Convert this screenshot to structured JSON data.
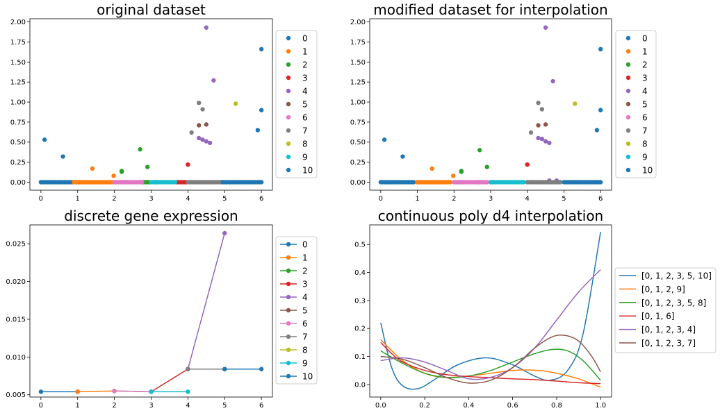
{
  "colors": [
    "#1f77b4",
    "#ff7f0e",
    "#2ca02c",
    "#d62728",
    "#9467bd",
    "#8c564b",
    "#e377c2",
    "#7f7f7f",
    "#bcbd22",
    "#17becf",
    "#1f77b4"
  ],
  "chart_data": [
    {
      "type": "scatter",
      "title": "original dataset",
      "xlim": [
        -0.3,
        6.3
      ],
      "ylim": [
        -0.1,
        2.04
      ],
      "xticks": [
        0,
        1,
        2,
        3,
        4,
        5,
        6
      ],
      "xtick_labels": [
        "0",
        "1",
        "2",
        "3",
        "4",
        "5",
        "6"
      ],
      "yticks": [
        0,
        0.25,
        0.5,
        0.75,
        1,
        1.25,
        1.5,
        1.75,
        2
      ],
      "ytick_labels": [
        "0.00",
        "0.25",
        "0.50",
        "0.75",
        "1.00",
        "1.25",
        "1.50",
        "1.75",
        "2.00"
      ],
      "legend": {
        "position": "right",
        "entries": [
          "0",
          "1",
          "2",
          "3",
          "4",
          "5",
          "6",
          "7",
          "8",
          "9",
          "10"
        ]
      },
      "series": [
        {
          "name": "0",
          "segments": [
            [
              0,
              1.1
            ]
          ],
          "nonzero": [
            [
              0.1,
              0.53
            ],
            [
              0.6,
              0.32
            ]
          ]
        },
        {
          "name": "1",
          "segments": [
            [
              0.9,
              2.0
            ]
          ],
          "nonzero": [
            [
              1.4,
              0.17
            ],
            [
              1.98,
              0.08
            ]
          ]
        },
        {
          "name": "2",
          "segments": [
            [
              2.15,
              2.25
            ],
            [
              2.7,
              2.95
            ]
          ],
          "nonzero": [
            [
              2.2,
              0.14
            ],
            [
              2.2,
              0.13
            ],
            [
              2.7,
              0.41
            ],
            [
              2.9,
              0.19
            ]
          ]
        },
        {
          "name": "3",
          "segments": [
            [
              3.1,
              3.25
            ],
            [
              3.7,
              3.95
            ]
          ],
          "nonzero": [
            [
              4.0,
              0.22
            ]
          ]
        },
        {
          "name": "4",
          "segments": [],
          "nonzero": [
            [
              4.3,
              0.55
            ],
            [
              4.4,
              0.53
            ],
            [
              4.5,
              0.51
            ],
            [
              4.6,
              0.49
            ],
            [
              4.5,
              1.93
            ],
            [
              4.7,
              1.27
            ]
          ]
        },
        {
          "name": "5",
          "segments": [],
          "nonzero": [
            [
              4.3,
              0.71
            ],
            [
              4.5,
              0.72
            ]
          ]
        },
        {
          "name": "6",
          "segments": [
            [
              2.0,
              2.75
            ]
          ],
          "nonzero": []
        },
        {
          "name": "7",
          "segments": [
            [
              4.0,
              5.0
            ]
          ],
          "nonzero": [
            [
              4.1,
              0.62
            ],
            [
              4.3,
              0.99
            ],
            [
              4.4,
              0.91
            ]
          ]
        },
        {
          "name": "8",
          "segments": [],
          "nonzero": [
            [
              5.3,
              0.98
            ]
          ]
        },
        {
          "name": "9",
          "segments": [
            [
              3.0,
              3.65
            ]
          ],
          "nonzero": []
        },
        {
          "name": "10",
          "segments": [
            [
              4.95,
              6.0
            ]
          ],
          "nonzero": [
            [
              5.9,
              0.65
            ],
            [
              6.0,
              1.66
            ],
            [
              6.0,
              0.9
            ]
          ]
        }
      ]
    },
    {
      "type": "scatter",
      "title": "modified dataset for interpolation",
      "xlim": [
        -0.3,
        6.3
      ],
      "ylim": [
        -0.1,
        2.04
      ],
      "xticks": [
        0,
        1,
        2,
        3,
        4,
        5,
        6
      ],
      "xtick_labels": [
        "0",
        "1",
        "2",
        "3",
        "4",
        "5",
        "6"
      ],
      "yticks": [
        0,
        0.25,
        0.5,
        0.75,
        1,
        1.25,
        1.5,
        1.75,
        2
      ],
      "ytick_labels": [
        "0.00",
        "0.25",
        "0.50",
        "0.75",
        "1.00",
        "1.25",
        "1.50",
        "1.75",
        "2.00"
      ],
      "legend": {
        "position": "right",
        "entries": [
          "0",
          "1",
          "2",
          "3",
          "4",
          "5",
          "6",
          "7",
          "8",
          "9",
          "10"
        ]
      },
      "series": [
        {
          "name": "0",
          "segments": [
            [
              0,
              0.9
            ]
          ],
          "nonzero": [
            [
              0.1,
              0.53
            ],
            [
              0.6,
              0.32
            ]
          ]
        },
        {
          "name": "1",
          "segments": [
            [
              1.0,
              1.9
            ]
          ],
          "nonzero": [
            [
              1.4,
              0.17
            ],
            [
              1.98,
              0.08
            ]
          ]
        },
        {
          "name": "2",
          "segments": [
            [
              2.15,
              2.25
            ],
            [
              2.65,
              2.8
            ]
          ],
          "nonzero": [
            [
              2.2,
              0.14
            ],
            [
              2.2,
              0.13
            ],
            [
              2.7,
              0.4
            ],
            [
              2.9,
              0.19
            ]
          ]
        },
        {
          "name": "3",
          "segments": [
            [
              3.0,
              3.05
            ]
          ],
          "nonzero": [
            [
              4.0,
              0.22
            ]
          ]
        },
        {
          "name": "4",
          "segments": [],
          "nonzero": [
            [
              4.3,
              0.55
            ],
            [
              4.4,
              0.54
            ],
            [
              4.5,
              0.51
            ],
            [
              4.6,
              0.49
            ],
            [
              4.5,
              1.93
            ],
            [
              4.7,
              1.26
            ],
            [
              4.6,
              0.02
            ],
            [
              4.8,
              0.02
            ]
          ]
        },
        {
          "name": "5",
          "segments": [],
          "nonzero": [
            [
              4.3,
              0.71
            ],
            [
              4.5,
              0.72
            ]
          ]
        },
        {
          "name": "6",
          "segments": [
            [
              2.0,
              2.9
            ]
          ],
          "nonzero": []
        },
        {
          "name": "7",
          "segments": [
            [
              4.0,
              4.9
            ]
          ],
          "nonzero": [
            [
              4.1,
              0.62
            ],
            [
              4.3,
              0.99
            ],
            [
              4.4,
              0.91
            ]
          ]
        },
        {
          "name": "8",
          "segments": [],
          "nonzero": [
            [
              5.3,
              0.98
            ]
          ]
        },
        {
          "name": "9",
          "segments": [
            [
              3.0,
              3.9
            ]
          ],
          "nonzero": []
        },
        {
          "name": "10",
          "segments": [
            [
              5.0,
              6.0
            ]
          ],
          "nonzero": [
            [
              5.9,
              0.65
            ],
            [
              6.0,
              1.66
            ],
            [
              6.0,
              0.9
            ]
          ]
        }
      ]
    },
    {
      "type": "line",
      "title": "discrete gene expression",
      "xlim": [
        -0.3,
        6.3
      ],
      "ylim": [
        0.0047,
        0.0275
      ],
      "xticks": [
        0,
        1,
        2,
        3,
        4,
        5,
        6
      ],
      "xtick_labels": [
        "0",
        "1",
        "2",
        "3",
        "4",
        "5",
        "6"
      ],
      "yticks": [
        0.005,
        0.01,
        0.015,
        0.02,
        0.025
      ],
      "ytick_labels": [
        "0.005",
        "0.010",
        "0.015",
        "0.020",
        "0.025"
      ],
      "legend": {
        "position": "right",
        "entries": [
          "0",
          "1",
          "2",
          "3",
          "4",
          "5",
          "6",
          "7",
          "8",
          "9",
          "10"
        ]
      },
      "series": [
        {
          "name": "0",
          "points": [
            [
              0,
              0.0054
            ],
            [
              1,
              0.0054
            ]
          ]
        },
        {
          "name": "1",
          "points": [
            [
              1,
              0.0054
            ],
            [
              2,
              0.0055
            ]
          ]
        },
        {
          "name": "2",
          "points": [
            [
              2,
              0.0055
            ],
            [
              3,
              0.0054
            ]
          ]
        },
        {
          "name": "3",
          "points": [
            [
              3,
              0.0054
            ],
            [
              4,
              0.0084
            ]
          ]
        },
        {
          "name": "4",
          "points": [
            [
              4,
              0.0084
            ],
            [
              5,
              0.0264
            ]
          ]
        },
        {
          "name": "5",
          "points": [
            [
              4,
              0.0084
            ],
            [
              5,
              0.0084
            ]
          ]
        },
        {
          "name": "6",
          "points": [
            [
              2,
              0.0055
            ],
            [
              3,
              0.0054
            ]
          ]
        },
        {
          "name": "7",
          "points": [
            [
              4,
              0.0084
            ],
            [
              5,
              0.0084
            ]
          ]
        },
        {
          "name": "8",
          "points": []
        },
        {
          "name": "9",
          "points": [
            [
              3,
              0.0054
            ],
            [
              4,
              0.0054
            ]
          ]
        },
        {
          "name": "10",
          "points": [
            [
              5,
              0.0084
            ],
            [
              6,
              0.0084
            ]
          ]
        }
      ]
    },
    {
      "type": "line",
      "title": "continuous poly d4 interpolation",
      "xlim": [
        -0.05,
        1.05
      ],
      "ylim": [
        -0.045,
        0.57
      ],
      "xticks": [
        0,
        0.2,
        0.4,
        0.6,
        0.8,
        1.0
      ],
      "xtick_labels": [
        "0.0",
        "0.2",
        "0.4",
        "0.6",
        "0.8",
        "1.0"
      ],
      "yticks": [
        0,
        0.1,
        0.2,
        0.3,
        0.4,
        0.5
      ],
      "ytick_labels": [
        "0.0",
        "0.1",
        "0.2",
        "0.3",
        "0.4",
        "0.5"
      ],
      "legend": {
        "position": "right",
        "entries": [
          "[0, 1, 2, 3, 5, 10]",
          "[0, 1, 2, 9]",
          "[0, 1, 2, 3, 5, 8]",
          "[0, 1, 6]",
          "[0, 1, 2, 3, 4]",
          "[0, 1, 2, 3, 7]"
        ]
      },
      "series": [
        {
          "name": "[0, 1, 2, 3, 5, 10]",
          "color": "#1f77b4",
          "points": [
            [
              0,
              0.22
            ],
            [
              0.05,
              0.06
            ],
            [
              0.1,
              -0.005
            ],
            [
              0.17,
              -0.015
            ],
            [
              0.25,
              0.02
            ],
            [
              0.35,
              0.07
            ],
            [
              0.48,
              0.095
            ],
            [
              0.6,
              0.07
            ],
            [
              0.7,
              0.03
            ],
            [
              0.77,
              0.015
            ],
            [
              0.85,
              0.05
            ],
            [
              0.92,
              0.18
            ],
            [
              1.0,
              0.545
            ]
          ]
        },
        {
          "name": "[0, 1, 2, 9]",
          "color": "#ff7f0e",
          "points": [
            [
              0,
              0.16
            ],
            [
              0.1,
              0.085
            ],
            [
              0.2,
              0.04
            ],
            [
              0.3,
              0.025
            ],
            [
              0.45,
              0.035
            ],
            [
              0.6,
              0.05
            ],
            [
              0.72,
              0.05
            ],
            [
              0.8,
              0.04
            ],
            [
              0.9,
              0.02
            ],
            [
              1.0,
              -0.01
            ]
          ]
        },
        {
          "name": "[0, 1, 2, 3, 5, 8]",
          "color": "#2ca02c",
          "points": [
            [
              0,
              0.12
            ],
            [
              0.1,
              0.075
            ],
            [
              0.2,
              0.04
            ],
            [
              0.3,
              0.025
            ],
            [
              0.4,
              0.03
            ],
            [
              0.5,
              0.05
            ],
            [
              0.6,
              0.08
            ],
            [
              0.7,
              0.11
            ],
            [
              0.78,
              0.125
            ],
            [
              0.85,
              0.12
            ],
            [
              0.92,
              0.085
            ],
            [
              1.0,
              0.015
            ]
          ]
        },
        {
          "name": "[0, 1, 6]",
          "color": "#d62728",
          "points": [
            [
              0,
              0.15
            ],
            [
              0.05,
              0.11
            ],
            [
              0.1,
              0.08
            ],
            [
              0.2,
              0.05
            ],
            [
              0.3,
              0.035
            ],
            [
              0.4,
              0.028
            ],
            [
              0.5,
              0.024
            ],
            [
              0.6,
              0.02
            ],
            [
              0.7,
              0.017
            ],
            [
              0.8,
              0.012
            ],
            [
              0.9,
              0.006
            ],
            [
              1.0,
              0.003
            ]
          ]
        },
        {
          "name": "[0, 1, 2, 3, 4]",
          "color": "#9467bd",
          "points": [
            [
              0,
              0.085
            ],
            [
              0.1,
              0.095
            ],
            [
              0.2,
              0.08
            ],
            [
              0.3,
              0.05
            ],
            [
              0.4,
              0.02
            ],
            [
              0.5,
              0.025
            ],
            [
              0.6,
              0.06
            ],
            [
              0.7,
              0.13
            ],
            [
              0.8,
              0.23
            ],
            [
              0.9,
              0.33
            ],
            [
              1.0,
              0.41
            ]
          ]
        },
        {
          "name": "[0, 1, 2, 3, 7]",
          "color": "#8c564b",
          "points": [
            [
              0,
              0.1
            ],
            [
              0.1,
              0.09
            ],
            [
              0.2,
              0.06
            ],
            [
              0.3,
              0.025
            ],
            [
              0.4,
              0.005
            ],
            [
              0.5,
              0.015
            ],
            [
              0.6,
              0.06
            ],
            [
              0.7,
              0.13
            ],
            [
              0.78,
              0.17
            ],
            [
              0.84,
              0.175
            ],
            [
              0.9,
              0.155
            ],
            [
              0.96,
              0.1
            ],
            [
              1.0,
              0.045
            ]
          ]
        }
      ]
    }
  ]
}
